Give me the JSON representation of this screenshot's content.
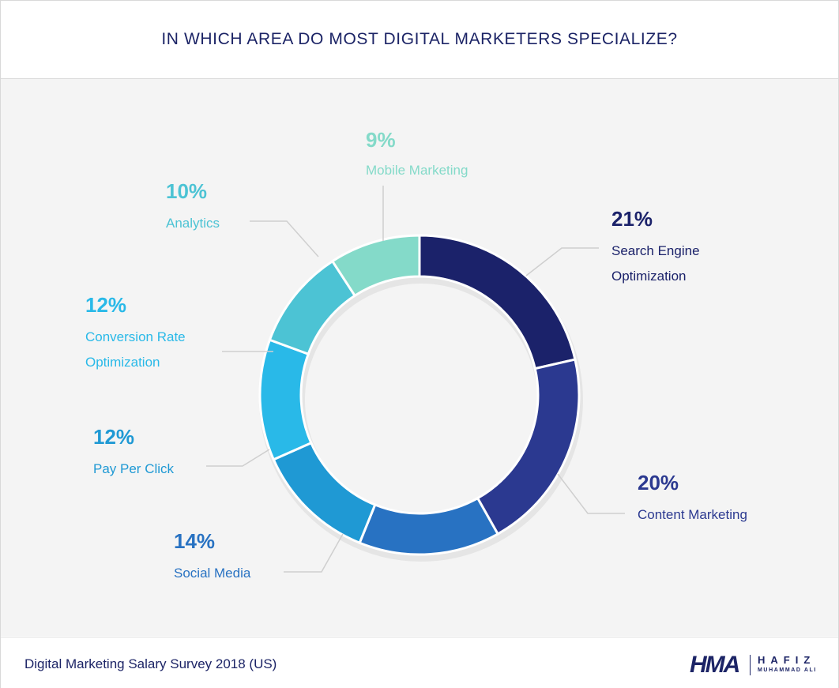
{
  "header": {
    "title": "IN WHICH AREA DO MOST DIGITAL MARKETERS SPECIALIZE?"
  },
  "chart_data": {
    "type": "pie",
    "title": "IN WHICH AREA DO MOST DIGITAL MARKETERS SPECIALIZE?",
    "categories": [
      "Search Engine Optimization",
      "Content Marketing",
      "Social Media",
      "Pay Per Click",
      "Conversion Rate Optimization",
      "Analytics",
      "Mobile Marketing"
    ],
    "values": [
      21,
      20,
      14,
      12,
      12,
      10,
      9
    ],
    "value_labels": [
      "21%",
      "20%",
      "14%",
      "12%",
      "12%",
      "10%",
      "9%"
    ],
    "label_lines": [
      [
        "Search Engine",
        "Optimization"
      ],
      [
        "Content Marketing"
      ],
      [
        "Social Media"
      ],
      [
        "Pay Per Click"
      ],
      [
        "Conversion Rate",
        "Optimization"
      ],
      [
        "Analytics"
      ],
      [
        "Mobile Marketing"
      ]
    ],
    "colors": [
      "#1b226a",
      "#2b3990",
      "#2872c2",
      "#1f99d4",
      "#29b9e8",
      "#4cc3d4",
      "#84dac9"
    ],
    "style": "donut",
    "legend": "none"
  },
  "footer": {
    "source": "Digital Marketing Salary Survey 2018 (US)",
    "logo_mark": "HMA",
    "logo_name": "HAFIZ",
    "logo_sub": "MUHAMMAD ALI"
  }
}
